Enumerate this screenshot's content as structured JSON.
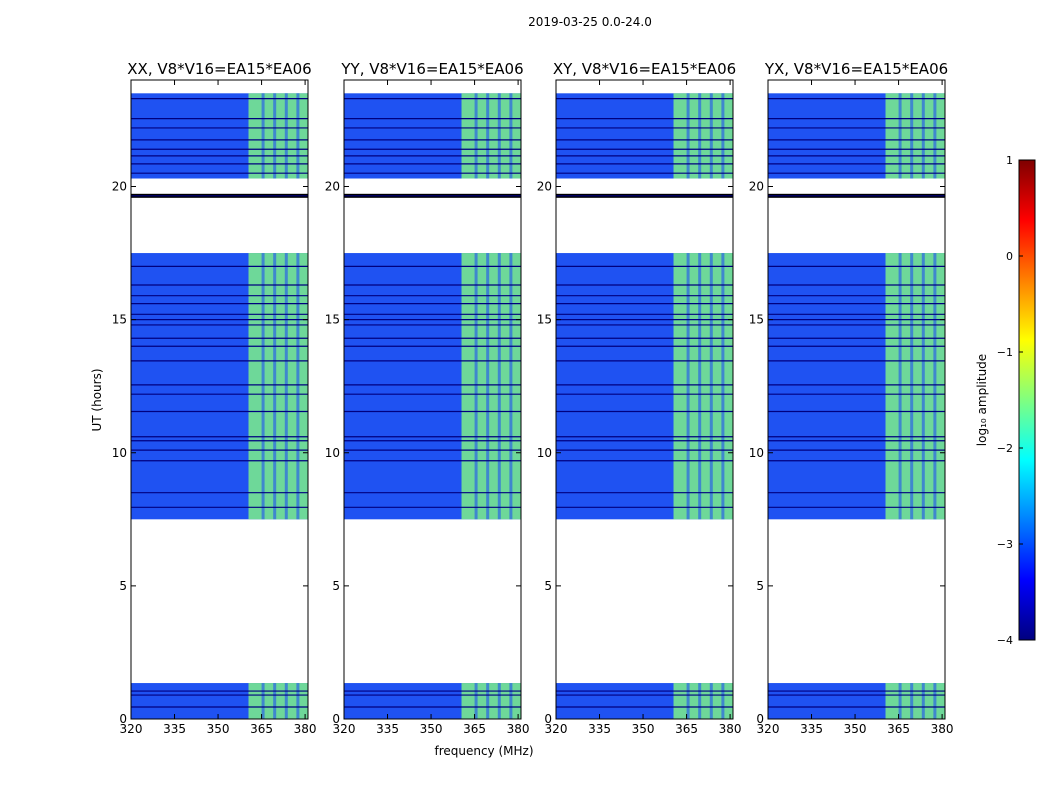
{
  "chart_data": {
    "type": "heatmap",
    "title": "2019-03-25 0.0-24.0",
    "xlabel": "frequency (MHz)",
    "ylabel": "UT (hours)",
    "xlim": [
      320,
      381
    ],
    "ylim": [
      0,
      24
    ],
    "x_ticks": [
      320,
      335,
      350,
      365,
      380
    ],
    "y_ticks": [
      0,
      5,
      10,
      15,
      20
    ],
    "panels": [
      {
        "title": "XX, V8*V16=EA15*EA06"
      },
      {
        "title": "YY, V8*V16=EA15*EA06"
      },
      {
        "title": "XY, V8*V16=EA15*EA06"
      },
      {
        "title": "YX, V8*V16=EA15*EA06"
      }
    ],
    "data_segments_hours": [
      [
        0.0,
        1.35
      ],
      [
        7.5,
        17.5
      ],
      [
        20.3,
        23.5
      ]
    ],
    "gap_lines_hours": [
      0.45,
      0.9,
      1.05,
      7.95,
      8.5,
      9.7,
      10.1,
      10.45,
      10.6,
      11.55,
      12.2,
      12.55,
      13.45,
      14.0,
      14.3,
      14.8,
      15.0,
      15.2,
      15.6,
      15.9,
      16.3,
      17.0,
      19.65,
      20.5,
      20.85,
      21.15,
      21.4,
      21.75,
      22.2,
      22.55,
      23.3
    ],
    "bright_band_mhz": [
      360.5,
      381
    ],
    "colorbar": {
      "label": "log₁₀ amplitude",
      "ticks": [
        -4,
        -3,
        -2,
        -1,
        0,
        1
      ],
      "range": [
        -4,
        1
      ],
      "colormap": "jet",
      "colors": [
        "#00007f",
        "#0000ff",
        "#0080ff",
        "#00ffff",
        "#80ff80",
        "#ffff00",
        "#ff8000",
        "#ff0000",
        "#7f0000"
      ]
    }
  }
}
